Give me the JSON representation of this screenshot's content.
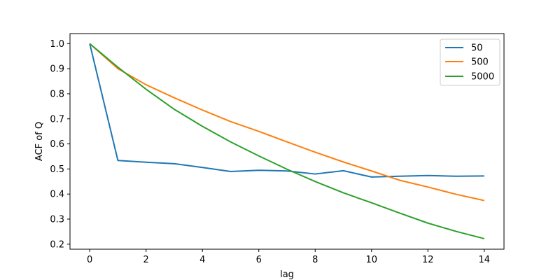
{
  "chart_data": {
    "type": "line",
    "title": "",
    "xlabel": "lag",
    "ylabel": "ACF of Q",
    "xlim": [
      -0.7,
      14.7
    ],
    "ylim": [
      0.18,
      1.04
    ],
    "xticks": [
      0,
      2,
      4,
      6,
      8,
      10,
      12,
      14
    ],
    "yticks": [
      0.2,
      0.3,
      0.4,
      0.5,
      0.6,
      0.7,
      0.8,
      0.9,
      1.0
    ],
    "grid": false,
    "legend_position": "top-right",
    "x": [
      0,
      1,
      2,
      3,
      4,
      5,
      6,
      7,
      8,
      9,
      10,
      11,
      12,
      13,
      14
    ],
    "series": [
      {
        "name": "50",
        "color": "#1f77b4",
        "values": [
          1.0,
          0.534,
          0.527,
          0.521,
          0.506,
          0.49,
          0.495,
          0.492,
          0.48,
          0.493,
          0.468,
          0.471,
          0.474,
          0.471,
          0.472
        ]
      },
      {
        "name": "500",
        "color": "#ff7f0e",
        "values": [
          1.0,
          0.9,
          0.836,
          0.784,
          0.735,
          0.689,
          0.65,
          0.608,
          0.567,
          0.528,
          0.492,
          0.455,
          0.428,
          0.399,
          0.374
        ]
      },
      {
        "name": "5000",
        "color": "#2ca02c",
        "values": [
          1.0,
          0.906,
          0.818,
          0.738,
          0.67,
          0.608,
          0.552,
          0.499,
          0.45,
          0.405,
          0.365,
          0.324,
          0.284,
          0.251,
          0.222
        ]
      }
    ]
  }
}
